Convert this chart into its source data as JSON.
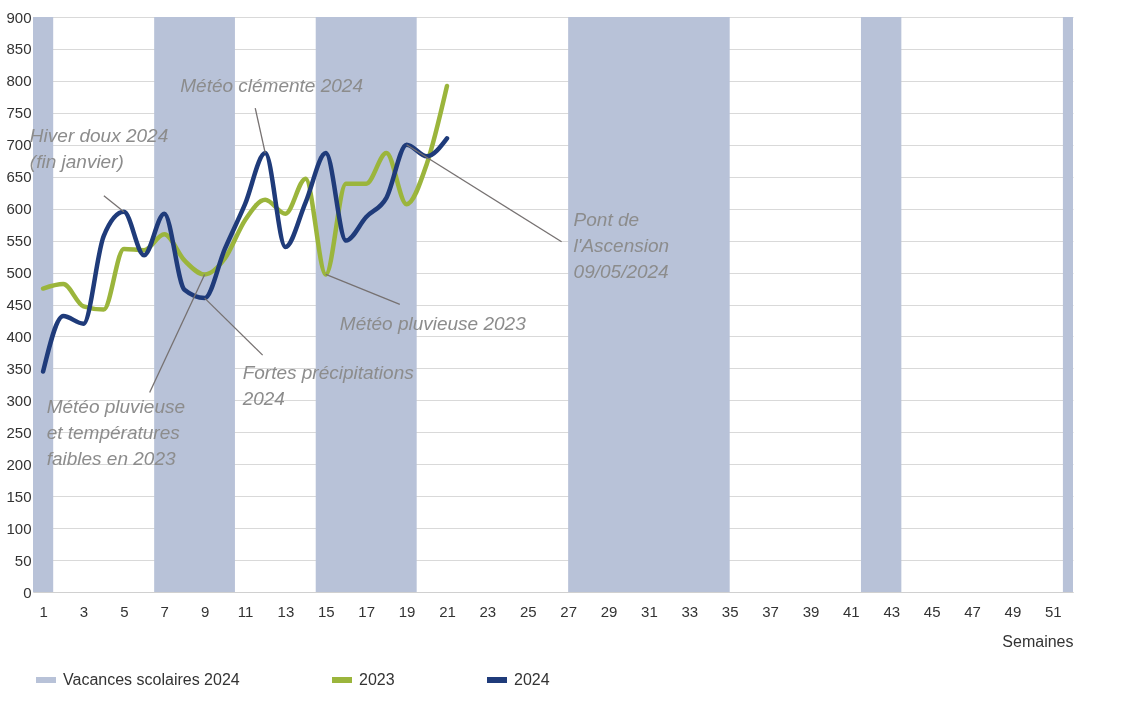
{
  "chart_data": {
    "type": "line",
    "xlabel": "Semaines",
    "x": [
      1,
      2,
      3,
      4,
      5,
      6,
      7,
      8,
      9,
      10,
      11,
      12,
      13,
      14,
      15,
      16,
      17,
      18,
      19,
      20,
      21
    ],
    "series": [
      {
        "name": "2023",
        "color": "#9bb53c",
        "values": [
          475,
          482,
          447,
          442,
          537,
          535,
          560,
          519,
          497,
          522,
          582,
          614,
          592,
          647,
          497,
          639,
          639,
          687,
          607,
          670,
          792
        ]
      },
      {
        "name": "2024",
        "color": "#1f3b7a",
        "values": [
          345,
          432,
          420,
          557,
          595,
          527,
          592,
          473,
          460,
          537,
          607,
          687,
          540,
          610,
          687,
          550,
          587,
          617,
          700,
          682,
          710
        ]
      }
    ],
    "xlim": [
      0.5,
      52
    ],
    "xticks": [
      1,
      3,
      5,
      7,
      9,
      11,
      13,
      15,
      17,
      19,
      21,
      23,
      25,
      27,
      29,
      31,
      33,
      35,
      37,
      39,
      41,
      43,
      45,
      47,
      49,
      51
    ],
    "ylim": [
      0,
      900
    ],
    "yticks": [
      0,
      50,
      100,
      150,
      200,
      250,
      300,
      350,
      400,
      450,
      500,
      550,
      600,
      650,
      700,
      750,
      800,
      850,
      900
    ],
    "grid": "y",
    "legend": "bottom",
    "line_style": "solid",
    "marker": "none",
    "bands": [
      {
        "axis": "x",
        "from": 0.5,
        "to": 1.5,
        "label": "Vacances scolaires 2024",
        "color": "#b8c2d8"
      },
      {
        "axis": "x",
        "from": 6.5,
        "to": 10.5,
        "color": "#b8c2d8"
      },
      {
        "axis": "x",
        "from": 14.5,
        "to": 19.5,
        "color": "#b8c2d8"
      },
      {
        "axis": "x",
        "from": 27,
        "to": 35,
        "color": "#b8c2d8"
      },
      {
        "axis": "x",
        "from": 41.5,
        "to": 43.5,
        "color": "#b8c2d8"
      },
      {
        "axis": "x",
        "from": 51.5,
        "to": 52,
        "color": "#b8c2d8"
      }
    ],
    "annotations": [
      {
        "text": "Hiver doux 2024\n(fin janvier)",
        "x": 5,
        "y": 595
      },
      {
        "text": "Météo clémente 2024",
        "x": 12,
        "y": 687
      },
      {
        "text": "Pont de\nl'Ascension\n09/05/2024",
        "x": 19,
        "y": 700
      },
      {
        "text": "Météo pluvieuse 2023",
        "x": 15,
        "y": 497
      },
      {
        "text": "Fortes précipitations\n2024",
        "x": 9,
        "y": 460
      },
      {
        "text": "Météo pluvieuse\net températures\nfaibles en 2023",
        "x": 9,
        "y": 497
      }
    ]
  }
}
